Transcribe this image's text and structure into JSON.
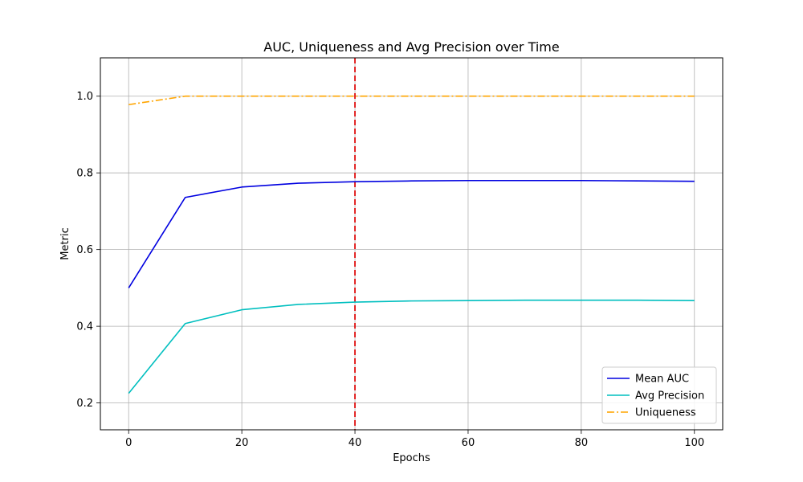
{
  "chart_data": {
    "type": "line",
    "title": "AUC, Uniqueness and Avg Precision over Time",
    "xlabel": "Epochs",
    "ylabel": "Metric",
    "xlim": [
      -5,
      105
    ],
    "ylim": [
      0.13,
      1.1
    ],
    "x": [
      0,
      10,
      20,
      30,
      40,
      50,
      60,
      70,
      80,
      90,
      100
    ],
    "xticks": [
      0,
      20,
      40,
      60,
      80,
      100
    ],
    "yticks": [
      0.2,
      0.4,
      0.6,
      0.8,
      1.0
    ],
    "highlight_x": 40,
    "highlight_color": "#e01010",
    "grid": true,
    "legend_position": "lower-right",
    "series": [
      {
        "name": "Mean AUC",
        "color": "#0000e0",
        "style": "solid",
        "values": [
          0.5,
          0.736,
          0.763,
          0.773,
          0.777,
          0.779,
          0.78,
          0.78,
          0.78,
          0.779,
          0.778
        ]
      },
      {
        "name": "Avg Precision",
        "color": "#00bfbf",
        "style": "solid",
        "values": [
          0.225,
          0.407,
          0.443,
          0.457,
          0.463,
          0.466,
          0.467,
          0.468,
          0.468,
          0.468,
          0.467
        ]
      },
      {
        "name": "Uniqueness",
        "color": "#ffa500",
        "style": "dashdot",
        "values": [
          0.978,
          1.0,
          1.0,
          1.0,
          1.0,
          1.0,
          1.0,
          1.0,
          1.0,
          1.0,
          1.0
        ]
      }
    ]
  }
}
